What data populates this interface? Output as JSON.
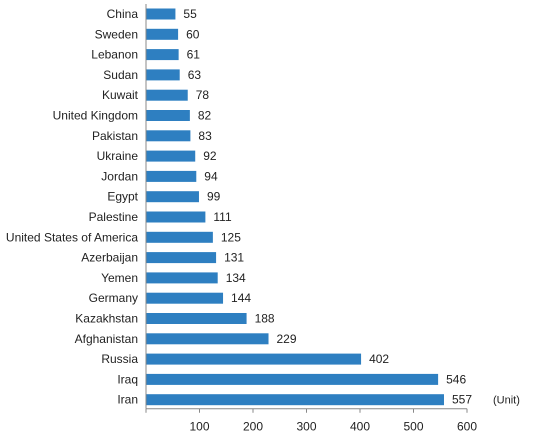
{
  "chart_data": {
    "type": "bar",
    "orientation": "horizontal",
    "categories": [
      "China",
      "Sweden",
      "Lebanon",
      "Sudan",
      "Kuwait",
      "United Kingdom",
      "Pakistan",
      "Ukraine",
      "Jordan",
      "Egypt",
      "Palestine",
      "United States of America",
      "Azerbaijan",
      "Yemen",
      "Germany",
      "Kazakhstan",
      "Afghanistan",
      "Russia",
      "Iraq",
      "Iran"
    ],
    "values": [
      55,
      60,
      61,
      63,
      78,
      82,
      83,
      92,
      94,
      99,
      111,
      125,
      131,
      134,
      144,
      188,
      229,
      402,
      546,
      557
    ],
    "xlim": [
      0,
      600
    ],
    "xticks": [
      0,
      100,
      200,
      300,
      400,
      500,
      600
    ],
    "xtick_labels": [
      "",
      "100",
      "200",
      "300",
      "400",
      "500",
      "600"
    ],
    "unit_label": "(Unit)",
    "grid": false,
    "bar_color": "#2e7fc1"
  }
}
